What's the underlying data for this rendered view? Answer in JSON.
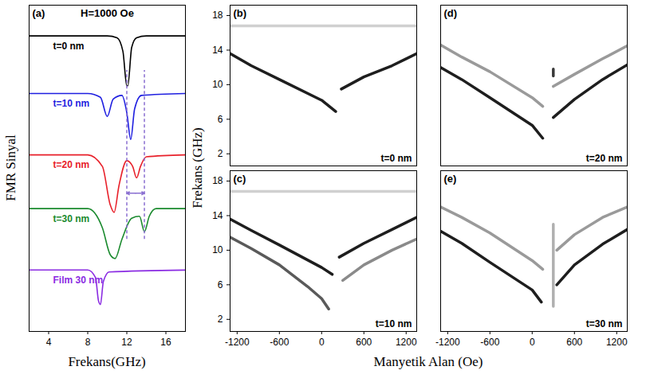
{
  "chart_data": [
    {
      "type": "line",
      "panel_label": "(a)",
      "title": "H=1000 Oe",
      "xlabel": "Frekans(GHz)",
      "ylabel": "FMR Sinyal",
      "xlim": [
        2,
        18
      ],
      "xticks": [
        4,
        8,
        12,
        16
      ],
      "ylim": [
        1.5,
        10
      ],
      "tick_labels": "x",
      "series": [
        {
          "name": "t=0 nm",
          "color": "#000000",
          "x": [
            2,
            6,
            10,
            11,
            11.6,
            12.0,
            12.1,
            12.5,
            13,
            14,
            18
          ],
          "values": [
            9.2,
            9.2,
            9.2,
            9.15,
            8.8,
            7.9,
            7.9,
            8.9,
            9.15,
            9.2,
            9.2
          ]
        },
        {
          "name": "t=10 nm",
          "color": "#1f1fe0",
          "x": [
            2,
            8,
            9.3,
            10.0,
            10.6,
            11.5,
            12.0,
            12.4,
            12.8,
            13.5,
            18
          ],
          "values": [
            7.7,
            7.7,
            7.6,
            7.1,
            7.55,
            7.65,
            7.2,
            6.5,
            7.3,
            7.65,
            7.7
          ]
        },
        {
          "name": "t=20 nm",
          "color": "#e8202a",
          "x": [
            2,
            8,
            9.5,
            10.3,
            10.7,
            11.2,
            12,
            12.6,
            13.0,
            13.4,
            14,
            18
          ],
          "values": [
            6.1,
            6.1,
            5.8,
            4.8,
            4.6,
            5.3,
            5.95,
            5.8,
            5.5,
            5.8,
            6.05,
            6.1
          ]
        },
        {
          "name": "t=30 nm",
          "color": "#1a8a2e",
          "x": [
            2,
            8,
            9.5,
            10.3,
            10.8,
            11.5,
            12.5,
            13.3,
            13.8,
            14.3,
            15,
            18
          ],
          "values": [
            4.7,
            4.7,
            4.2,
            3.5,
            3.4,
            3.9,
            4.45,
            4.5,
            4.1,
            4.5,
            4.7,
            4.7
          ]
        },
        {
          "name": "Film 30 nm",
          "color": "#8a2be2",
          "x": [
            2,
            8,
            8.8,
            9.1,
            9.3,
            9.6,
            10.2,
            18
          ],
          "values": [
            3.1,
            3.1,
            2.9,
            2.3,
            2.2,
            2.8,
            3.05,
            3.1
          ]
        }
      ],
      "annotation_lines": {
        "x": [
          12.0,
          13.8
        ],
        "y_from": 3.9,
        "y_to": 8.3,
        "arrow_y": 5.1,
        "color": "#8a6fd1"
      }
    },
    {
      "type": "line",
      "panel_label": "(b)",
      "annotation": "t=0 nm",
      "xlim": [
        -1300,
        1350
      ],
      "xticks": [
        -1200,
        -600,
        0,
        600,
        1200
      ],
      "ylim": [
        0.6,
        19.2
      ],
      "yticks": [
        2,
        6,
        10,
        14,
        18
      ],
      "tick_labels": "y",
      "series": [
        {
          "color": "#d0d0d0",
          "x": [
            -1300,
            1350
          ],
          "values": [
            16.8,
            16.8
          ]
        },
        {
          "color": "#1e1e1e",
          "x": [
            -1300,
            -1000,
            -600,
            0,
            200
          ],
          "values": [
            13.6,
            12.2,
            10.6,
            8.2,
            6.9
          ]
        },
        {
          "color": "#1e1e1e",
          "x": [
            280,
            600,
            1000,
            1350
          ],
          "values": [
            9.5,
            10.9,
            12.2,
            13.6
          ]
        }
      ]
    },
    {
      "type": "line",
      "panel_label": "(c)",
      "annotation": "t=10 nm",
      "xlim": [
        -1300,
        1350
      ],
      "xticks": [
        -1200,
        -600,
        0,
        600,
        1200
      ],
      "ylim": [
        0.6,
        19.2
      ],
      "yticks": [
        2,
        6,
        10,
        14,
        18
      ],
      "tick_labels": true,
      "series": [
        {
          "color": "#d0d0d0",
          "x": [
            -1300,
            1350
          ],
          "values": [
            16.8,
            16.8
          ]
        },
        {
          "color": "#1e1e1e",
          "x": [
            -1300,
            -1000,
            -600,
            0,
            150
          ],
          "values": [
            13.6,
            12.3,
            10.6,
            8.0,
            7.2
          ]
        },
        {
          "color": "#5a5a5a",
          "x": [
            -1300,
            -1000,
            -600,
            -200,
            0,
            100
          ],
          "values": [
            11.5,
            10.2,
            8.3,
            5.8,
            4.4,
            3.2
          ]
        },
        {
          "color": "#1e1e1e",
          "x": [
            250,
            600,
            1000,
            1350
          ],
          "values": [
            9.2,
            10.8,
            12.4,
            13.8
          ]
        },
        {
          "color": "#8a8a8a",
          "x": [
            300,
            600,
            1000,
            1350
          ],
          "values": [
            6.5,
            8.3,
            10.0,
            11.3
          ]
        }
      ]
    },
    {
      "type": "line",
      "panel_label": "(d)",
      "annotation": "t=20 nm",
      "xlim": [
        -1300,
        1350
      ],
      "xticks": [
        -1200,
        -600,
        0,
        600,
        1200
      ],
      "ylim": [
        0.6,
        19.2
      ],
      "yticks": [
        2,
        6,
        10,
        14,
        18
      ],
      "tick_labels": false,
      "series": [
        {
          "color": "#9a9a9a",
          "x": [
            -1300,
            -1000,
            -600,
            0,
            150
          ],
          "values": [
            14.6,
            13.2,
            11.5,
            8.5,
            7.5
          ]
        },
        {
          "color": "#1e1e1e",
          "x": [
            -1300,
            -1000,
            -600,
            0,
            150
          ],
          "values": [
            12.0,
            10.6,
            8.5,
            5.3,
            3.8
          ]
        },
        {
          "color": "#1e1e1e",
          "x": [
            300,
            600,
            1000,
            1350
          ],
          "values": [
            6.2,
            8.3,
            10.6,
            12.3
          ]
        },
        {
          "color": "#9a9a9a",
          "x": [
            300,
            600,
            1000,
            1350
          ],
          "values": [
            9.8,
            11.2,
            13.0,
            14.5
          ]
        },
        {
          "color": "#3a3a3a",
          "x": [
            300,
            300
          ],
          "values": [
            11.0,
            11.8
          ]
        }
      ]
    },
    {
      "type": "line",
      "panel_label": "(e)",
      "annotation": "t=30 nm",
      "xlim": [
        -1300,
        1350
      ],
      "xticks": [
        -1200,
        -600,
        0,
        600,
        1200
      ],
      "ylim": [
        0.6,
        19.2
      ],
      "yticks": [
        2,
        6,
        10,
        14,
        18
      ],
      "tick_labels": "x",
      "series": [
        {
          "color": "#9a9a9a",
          "x": [
            -1300,
            -1000,
            -600,
            0,
            150
          ],
          "values": [
            15.0,
            13.8,
            12.0,
            8.8,
            7.8
          ]
        },
        {
          "color": "#1e1e1e",
          "x": [
            -1300,
            -1000,
            -600,
            0,
            130
          ],
          "values": [
            12.2,
            10.8,
            8.6,
            5.4,
            4.0
          ]
        },
        {
          "color": "#1e1e1e",
          "x": [
            350,
            600,
            1000,
            1350
          ],
          "values": [
            6.0,
            8.3,
            10.7,
            12.4
          ]
        },
        {
          "color": "#9a9a9a",
          "x": [
            350,
            600,
            1000,
            1350
          ],
          "values": [
            10.0,
            11.8,
            13.8,
            15.0
          ]
        },
        {
          "color": "#b0b0b0",
          "x": [
            300,
            300
          ],
          "values": [
            3.5,
            13.0
          ]
        }
      ]
    }
  ],
  "shared_labels": {
    "x": "Manyetik Alan (Oe)",
    "y": "Frekans (GHz)"
  }
}
